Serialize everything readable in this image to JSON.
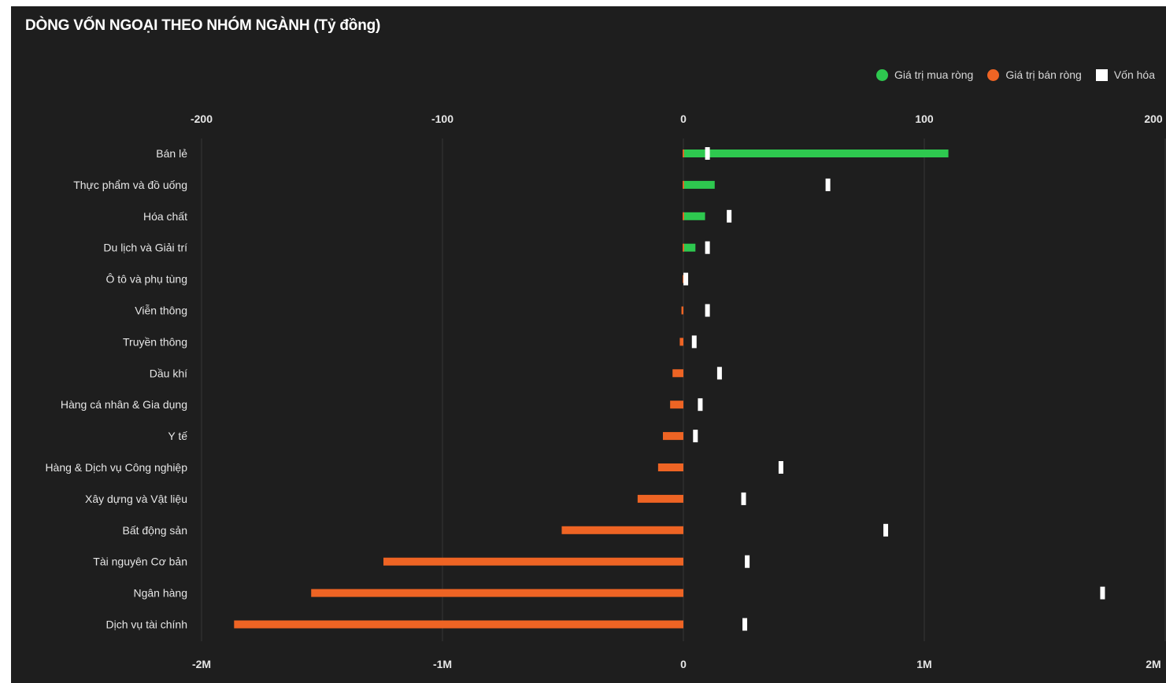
{
  "title": "DÒNG VỐN NGOẠI THEO NHÓM NGÀNH (Tỷ đồng)",
  "legend": {
    "buy": "Giá trị mua ròng",
    "sell": "Giá trị bán ròng",
    "cap": "Vốn hóa"
  },
  "colors": {
    "background": "#1e1e1e",
    "buy": "#2ec84f",
    "sell": "#ee6424",
    "cap": "#ffffff",
    "grid": "#353535"
  },
  "chart_data": {
    "type": "bar",
    "orientation": "horizontal",
    "title": "DÒNG VỐN NGOẠI THEO NHÓM NGÀNH (Tỷ đồng)",
    "categories": [
      "Bán lẻ",
      "Thực phẩm và đồ uống",
      "Hóa chất",
      "Du lịch và Giải trí",
      "Ô tô và phụ tùng",
      "Viễn thông",
      "Truyền thông",
      "Dầu khí",
      "Hàng cá nhân & Gia dụng",
      "Y tế",
      "Hàng & Dịch vụ Công nghiệp",
      "Xây dựng và Vật liệu",
      "Bất động sản",
      "Tài nguyên Cơ bản",
      "Ngân hàng",
      "Dịch vụ tài chính"
    ],
    "series": [
      {
        "name": "Giá trị mua ròng",
        "axis": "bottom",
        "values": [
          1100000,
          130000,
          90000,
          50000,
          5000,
          0,
          0,
          0,
          0,
          0,
          0,
          0,
          0,
          0,
          0,
          0
        ]
      },
      {
        "name": "Giá trị bán ròng",
        "axis": "bottom",
        "values": [
          0,
          0,
          0,
          0,
          0,
          -8000,
          -15000,
          -45000,
          -55000,
          -85000,
          -105000,
          -190000,
          -505000,
          -1245000,
          -1545000,
          -1865000
        ]
      },
      {
        "name": "Vốn hóa",
        "axis": "top",
        "values": [
          10,
          60,
          19,
          10,
          1,
          10,
          4.5,
          15,
          7,
          5,
          40.5,
          25,
          84,
          26.5,
          174,
          25.5
        ]
      }
    ],
    "top_axis": {
      "ticks": [
        "-200",
        "-100",
        "0",
        "100",
        "200"
      ],
      "range": [
        -200,
        200
      ]
    },
    "bottom_axis": {
      "ticks": [
        "-2M",
        "-1M",
        "0",
        "1M",
        "2M"
      ],
      "range": [
        -2000000,
        2000000
      ]
    },
    "legend_position": "top-right",
    "grid": true
  }
}
